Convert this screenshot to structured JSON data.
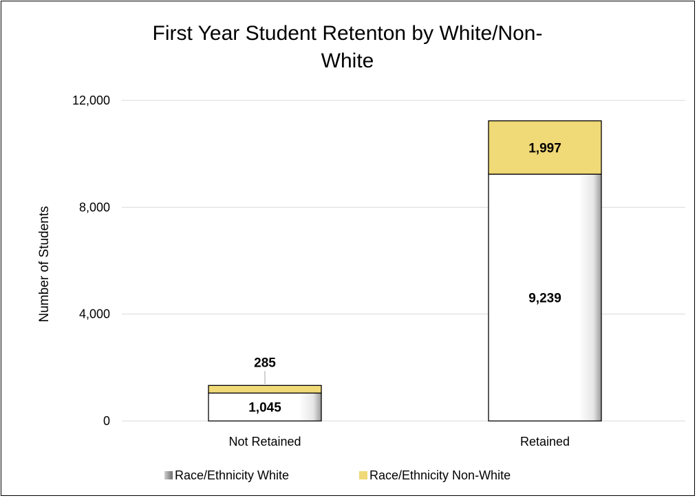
{
  "chart_data": {
    "type": "bar",
    "stacked": true,
    "title": "First Year Student Retenton by White/Non-White",
    "title_lines": [
      "First Year Student Retenton by White/Non-",
      "White"
    ],
    "xlabel": "",
    "ylabel": "Number of Students",
    "ylim": [
      0,
      12000
    ],
    "yticks": [
      0,
      4000,
      8000,
      12000
    ],
    "ytick_labels": [
      "0",
      "4,000",
      "8,000",
      "12,000"
    ],
    "grid": true,
    "legend_position": "bottom",
    "categories": [
      "Not Retained",
      "Retained"
    ],
    "series": [
      {
        "name": "Race/Ethnicity White",
        "values": [
          1045,
          9239
        ],
        "labels": [
          "1,045",
          "9,239"
        ],
        "color": "#ffffff",
        "legend_color": "#808080"
      },
      {
        "name": "Race/Ethnicity Non-White",
        "values": [
          285,
          1997
        ],
        "labels": [
          "285",
          "1,997"
        ],
        "color": "#f0d977",
        "legend_color": "#f0d977"
      }
    ]
  }
}
